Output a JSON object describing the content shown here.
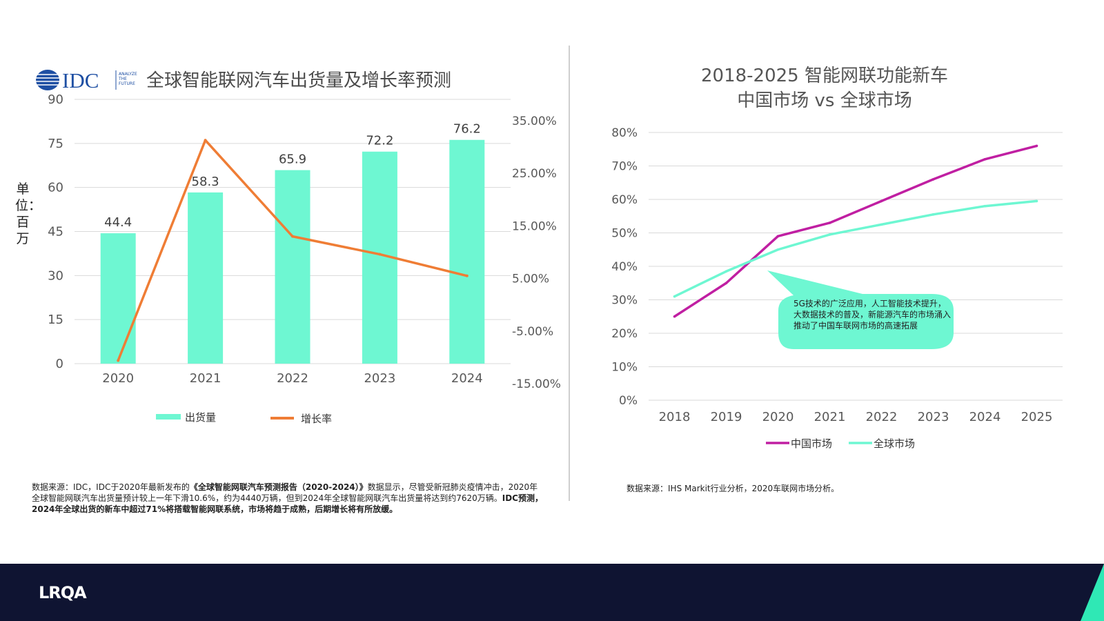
{
  "left": {
    "logo_text": "IDC",
    "logo_tagline": [
      "ANALYZE",
      "THE",
      "FUTURE"
    ],
    "title": "全球智能联网汽车出货量及增长率预测",
    "unit_label": "单位：百万",
    "note_parts": [
      "数据来源：IDC，IDC于2020年最新发布的",
      "《全球智能网联汽车预测报告（2020-2024）》",
      "数据显示，尽管受新冠肺炎疫情冲击，2020年全球智能网联汽车出货量预计较上一年下滑10.6%，约为4440万辆，但到2024年全球智能网联汽车出货量将达到约7620万辆。",
      "IDC预测，2024年全球出货的新车中超过71%将搭载智能网联系统，市场将趋于成熟，后期增长将有所放缓。"
    ]
  },
  "right": {
    "title_line1": "2018-2025 智能网联功能新车",
    "title_line2": "中国市场 vs 全球市场",
    "callout": "5G技术的广泛应用，人工智能技术提升，大数据技术的普及，新能源汽车的市场涌入推动了中国车联网市场的高速拓展",
    "note": "数据来源：IHS Markit行业分析，2020车联网市场分析。"
  },
  "footer": {
    "brand": "LRQA"
  },
  "colors": {
    "bar": "#6ef7d2",
    "growth": "#ef7d35",
    "china": "#c01fa2",
    "global": "#6ef7d2",
    "footer": "#0f1432",
    "accent": "#2fe8b5"
  },
  "chart_data": [
    {
      "type": "bar",
      "categories": [
        "2020",
        "2021",
        "2022",
        "2023",
        "2024"
      ],
      "series": [
        {
          "name": "出货量",
          "type": "bar",
          "axis": "left",
          "values": [
            44.4,
            58.3,
            65.9,
            72.2,
            76.2
          ],
          "labels": [
            "44.4",
            "58.3",
            "65.9",
            "72.2",
            "76.2"
          ]
        },
        {
          "name": "增长率",
          "type": "line",
          "axis": "right",
          "values": [
            -10.6,
            31.3,
            13.0,
            9.6,
            5.5
          ]
        }
      ],
      "y_left": {
        "ylim": [
          0,
          90
        ],
        "ticks": [
          "0",
          "15",
          "30",
          "45",
          "60",
          "75",
          "90"
        ]
      },
      "y_right": {
        "ylim": [
          -15,
          35
        ],
        "ticks": [
          "-15.00%",
          "-5.00%",
          "5.00%",
          "15.00%",
          "25.00%",
          "35.00%"
        ]
      },
      "grid": true,
      "legend_position": "bottom"
    },
    {
      "type": "line",
      "x": [
        "2018",
        "2019",
        "2020",
        "2021",
        "2022",
        "2023",
        "2024",
        "2025"
      ],
      "series": [
        {
          "name": "中国市场",
          "values": [
            25,
            35,
            49,
            53,
            59.5,
            66,
            72,
            76
          ]
        },
        {
          "name": "全球市场",
          "values": [
            31,
            38.5,
            45,
            49.5,
            52.5,
            55.5,
            58,
            59.5
          ]
        }
      ],
      "ylim": [
        0,
        80
      ],
      "y_ticks": [
        "0%",
        "10%",
        "20%",
        "30%",
        "40%",
        "50%",
        "60%",
        "70%",
        "80%"
      ],
      "grid": true,
      "legend_position": "bottom"
    }
  ]
}
